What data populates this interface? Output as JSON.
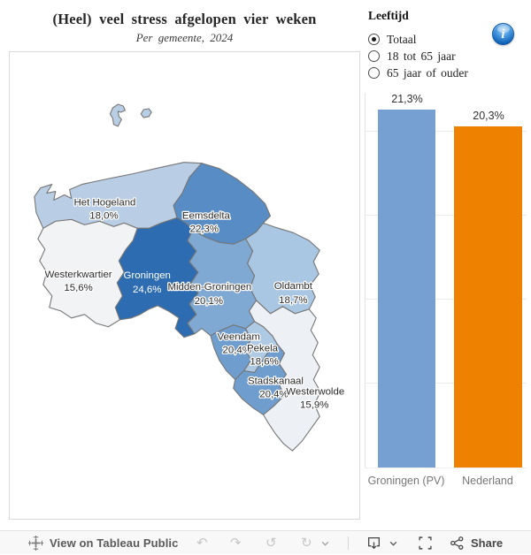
{
  "header": {
    "title": "(Heel) veel stress afgelopen vier weken",
    "subtitle": "Per gemeente, 2024"
  },
  "legend": {
    "title": "Leeftijd",
    "options": [
      {
        "label": "Totaal",
        "selected": true
      },
      {
        "label": "18 tot 65 jaar",
        "selected": false
      },
      {
        "label": "65 jaar of ouder",
        "selected": false
      }
    ]
  },
  "icons": {
    "info_glyph": "i",
    "undo_glyph": "↶",
    "redo_glyph": "↷",
    "reset_glyph": "↺",
    "refresh_glyph": "↻",
    "names": [
      "tableau-logo-icon",
      "undo-icon",
      "redo-icon",
      "reset-icon",
      "refresh-icon",
      "chevron-down-icon",
      "download-icon",
      "fullscreen-icon",
      "share-icon",
      "info-icon"
    ]
  },
  "toolbar": {
    "view_label": "View on Tableau Public",
    "share_label": "Share"
  },
  "chart_data": [
    {
      "type": "choropleth",
      "title": "(Heel) veel stress afgelopen vier weken",
      "subtitle": "Per gemeente, 2024",
      "value_unit": "%",
      "color_scale": {
        "min_color": "#f2f3f5",
        "max_color": "#2e6cb1"
      },
      "regions": [
        {
          "name": "Het Hogeland",
          "value": 18.0,
          "label": "18,0%",
          "color": "#b9cee5",
          "text_color": "#2b2b2b"
        },
        {
          "name": "Eemsdelta",
          "value": 22.3,
          "label": "22,3%",
          "color": "#578cc4",
          "text_color": "#2b2b2b"
        },
        {
          "name": "Westerkwartier",
          "value": 15.6,
          "label": "15,6%",
          "color": "#f2f3f5",
          "text_color": "#2b2b2b"
        },
        {
          "name": "Groningen",
          "value": 24.6,
          "label": "24,6%",
          "color": "#2e6cb1",
          "text_color": "#ffffff"
        },
        {
          "name": "Midden-Groningen",
          "value": 20.1,
          "label": "20,1%",
          "color": "#7fa8d2",
          "text_color": "#2b2b2b"
        },
        {
          "name": "Oldambt",
          "value": 18.7,
          "label": "18,7%",
          "color": "#a9c6e2",
          "text_color": "#2b2b2b"
        },
        {
          "name": "Veendam",
          "value": 20.4,
          "label": "20,4%",
          "color": "#6f9dce",
          "text_color": "#2b2b2b"
        },
        {
          "name": "Pekela",
          "value": 18.6,
          "label": "18,6%",
          "color": "#adc9e3",
          "text_color": "#2b2b2b"
        },
        {
          "name": "Stadskanaal",
          "value": 20.4,
          "label": "20,4%",
          "color": "#6f9dce",
          "text_color": "#2b2b2b"
        },
        {
          "name": "Westerwolde",
          "value": 15.9,
          "label": "15,9%",
          "color": "#edf1f6",
          "text_color": "#2b2b2b"
        }
      ]
    },
    {
      "type": "bar",
      "categories": [
        "Groningen (PV)",
        "Nederland"
      ],
      "values": [
        21.3,
        20.3
      ],
      "value_labels": [
        "21,3%",
        "20,3%"
      ],
      "colors": [
        "#769fd2",
        "#ef8100"
      ],
      "xlabel": "",
      "ylabel": "",
      "ylim": [
        0,
        22.4
      ],
      "gridlines_pct": [
        5,
        10,
        15,
        20
      ],
      "grid": true,
      "legend_position": "none"
    }
  ]
}
